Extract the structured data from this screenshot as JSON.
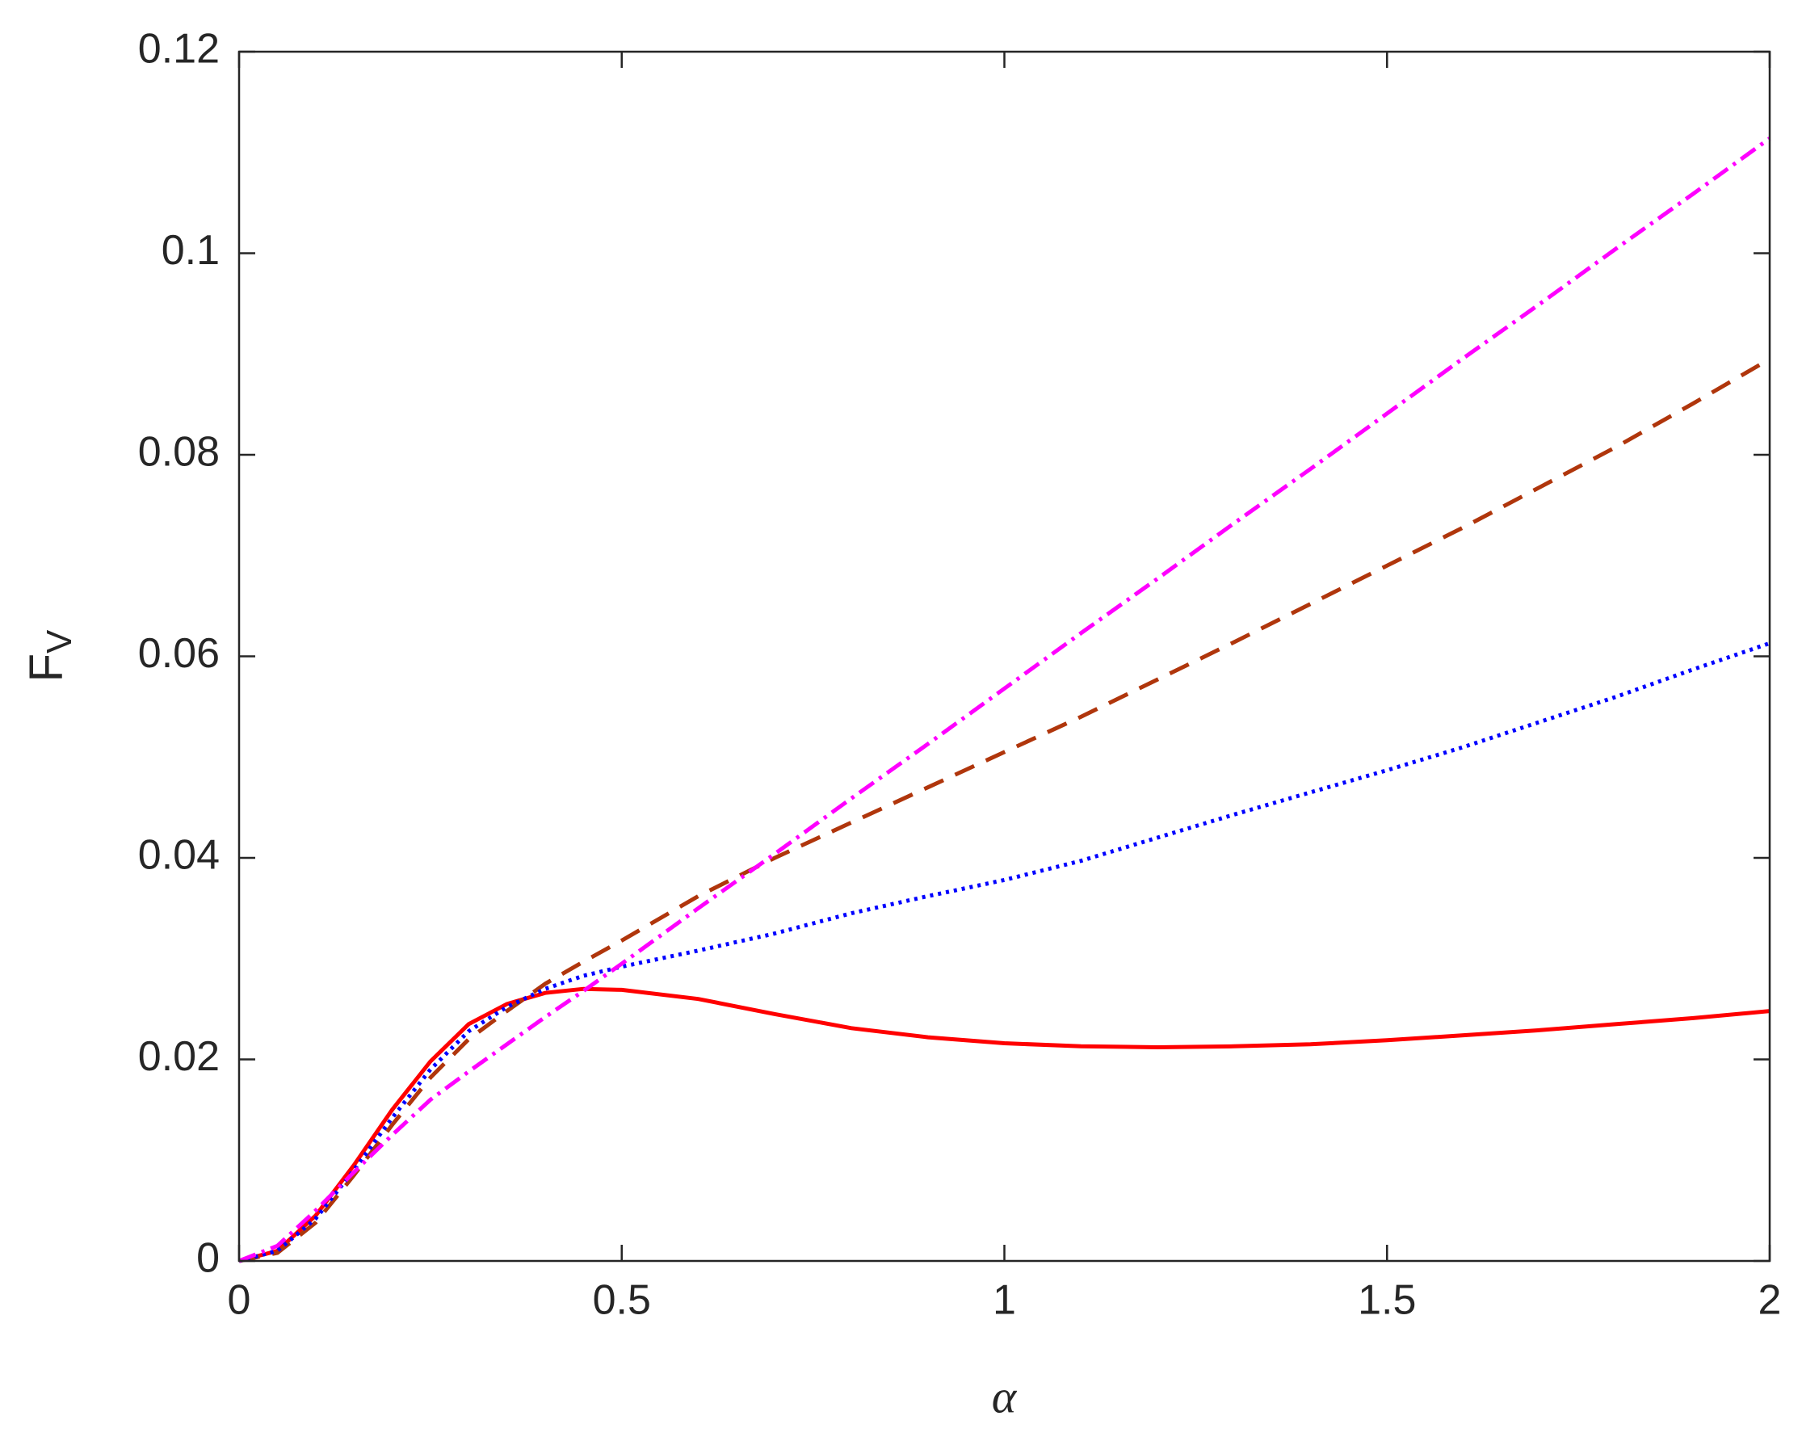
{
  "chart_data": {
    "type": "line",
    "xlabel": "α",
    "ylabel": "F",
    "ylabel_sub": "V",
    "x": [
      0,
      0.05,
      0.1,
      0.15,
      0.2,
      0.25,
      0.3,
      0.35,
      0.4,
      0.45,
      0.5,
      0.6,
      0.7,
      0.8,
      0.9,
      1.0,
      1.1,
      1.2,
      1.3,
      1.4,
      1.5,
      1.6,
      1.7,
      1.8,
      1.9,
      2.0
    ],
    "series": [
      {
        "color": "#ff0000",
        "dash": "solid",
        "values": [
          0,
          0.001,
          0.0045,
          0.0095,
          0.015,
          0.0198,
          0.0235,
          0.0255,
          0.0266,
          0.027,
          0.0269,
          0.026,
          0.0245,
          0.0231,
          0.0222,
          0.0216,
          0.0213,
          0.0212,
          0.0213,
          0.0215,
          0.0219,
          0.0224,
          0.0229,
          0.0235,
          0.0241,
          0.0248
        ]
      },
      {
        "color": "#b0360c",
        "dash": "dashed",
        "values": [
          0,
          0.0008,
          0.0038,
          0.0085,
          0.0135,
          0.0182,
          0.022,
          0.0248,
          0.0275,
          0.0297,
          0.0318,
          0.0362,
          0.04,
          0.0435,
          0.047,
          0.0505,
          0.054,
          0.0577,
          0.0614,
          0.0652,
          0.069,
          0.0728,
          0.0768,
          0.0808,
          0.0851,
          0.0895
        ]
      },
      {
        "color": "#0000ff",
        "dash": "dotted",
        "values": [
          0,
          0.001,
          0.0042,
          0.009,
          0.0142,
          0.019,
          0.0228,
          0.0252,
          0.027,
          0.0283,
          0.0292,
          0.0308,
          0.0325,
          0.0345,
          0.0362,
          0.0378,
          0.0397,
          0.042,
          0.0443,
          0.0465,
          0.0487,
          0.051,
          0.0535,
          0.056,
          0.0587,
          0.0613
        ]
      },
      {
        "color": "#ff00ff",
        "dash": "dashdot",
        "values": [
          0,
          0.0015,
          0.005,
          0.0088,
          0.0125,
          0.016,
          0.0188,
          0.0215,
          0.0242,
          0.0268,
          0.0295,
          0.035,
          0.0404,
          0.0459,
          0.0513,
          0.0568,
          0.0623,
          0.0677,
          0.0732,
          0.0786,
          0.0841,
          0.0896,
          0.095,
          0.1005,
          0.1059,
          0.1114
        ]
      }
    ],
    "xlim": [
      0,
      2
    ],
    "ylim": [
      0,
      0.12
    ],
    "xticks": [
      0,
      0.5,
      1,
      1.5,
      2
    ],
    "yticks": [
      0,
      0.02,
      0.04,
      0.06,
      0.08,
      0.1,
      0.12
    ]
  }
}
